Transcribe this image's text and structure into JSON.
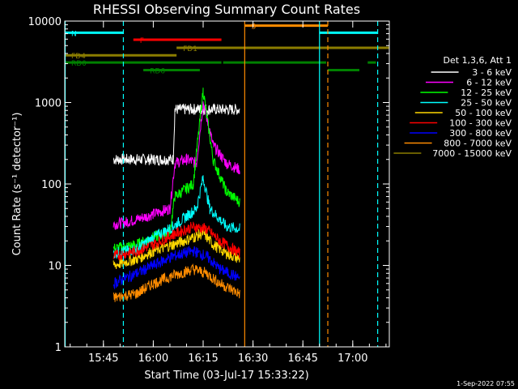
{
  "colors": {
    "background": "#000000",
    "frame": "#ffffff",
    "cyan": "#00ffff",
    "orange": "#ff8c00",
    "red": "#ff0000",
    "olive": "#8b7d00",
    "green": "#008000"
  },
  "chart_data": {
    "type": "line",
    "title": "RHESSI Observing Summary Count Rates",
    "xlabel": "Start Time (03-Jul-17 15:33:22)",
    "ylabel": "Count Rate (s⁻¹ detector⁻¹)",
    "yscale": "log",
    "ylim": [
      1,
      10000
    ],
    "xlim": [
      "15:33:22",
      "17:11:00"
    ],
    "x_ticks": [
      "15:45",
      "16:00",
      "16:15",
      "16:30",
      "16:45",
      "17:00"
    ],
    "y_ticks": [
      "1",
      "10",
      "100",
      "1000",
      "10000"
    ],
    "legend_title": "Det 1,3,6, Att 1",
    "legend_position": "right",
    "timestamp": "1-Sep-2022 07:55",
    "series": [
      {
        "name": "3 - 6 keV",
        "color": "#ffffff",
        "points": [
          [
            "15:48:00",
            200
          ],
          [
            "15:55:00",
            200
          ],
          [
            "16:04:00",
            200
          ],
          [
            "16:06:00",
            200
          ],
          [
            "16:06:30",
            820
          ],
          [
            "16:14:00",
            830
          ],
          [
            "16:20:00",
            820
          ],
          [
            "16:26:00",
            820
          ]
        ]
      },
      {
        "name": "6 - 12 keV",
        "color": "#ff00ff",
        "points": [
          [
            "15:48:00",
            32
          ],
          [
            "15:52:00",
            34
          ],
          [
            "15:58:00",
            40
          ],
          [
            "16:05:00",
            50
          ],
          [
            "16:06:30",
            180
          ],
          [
            "16:10:00",
            200
          ],
          [
            "16:13:00",
            180
          ],
          [
            "16:15:00",
            1000
          ],
          [
            "16:18:00",
            300
          ],
          [
            "16:22:00",
            180
          ],
          [
            "16:26:00",
            150
          ]
        ]
      },
      {
        "name": "12 - 25 keV",
        "color": "#00ff00",
        "points": [
          [
            "15:48:00",
            16
          ],
          [
            "15:55:00",
            18
          ],
          [
            "16:00:00",
            22
          ],
          [
            "16:05:00",
            26
          ],
          [
            "16:06:30",
            70
          ],
          [
            "16:12:00",
            100
          ],
          [
            "16:15:00",
            1400
          ],
          [
            "16:18:00",
            200
          ],
          [
            "16:22:00",
            80
          ],
          [
            "16:26:00",
            60
          ]
        ]
      },
      {
        "name": "25 - 50 keV",
        "color": "#00ffff",
        "points": [
          [
            "15:48:00",
            14
          ],
          [
            "15:55:00",
            16
          ],
          [
            "16:00:00",
            22
          ],
          [
            "16:06:00",
            30
          ],
          [
            "16:10:00",
            40
          ],
          [
            "16:13:00",
            50
          ],
          [
            "16:15:00",
            120
          ],
          [
            "16:17:00",
            50
          ],
          [
            "16:22:00",
            30
          ],
          [
            "16:26:00",
            28
          ]
        ]
      },
      {
        "name": "50 - 100 keV",
        "color": "#ffd700",
        "points": [
          [
            "15:48:00",
            10
          ],
          [
            "15:55:00",
            12
          ],
          [
            "16:00:00",
            15
          ],
          [
            "16:06:00",
            18
          ],
          [
            "16:12:00",
            22
          ],
          [
            "16:15:00",
            25
          ],
          [
            "16:18:00",
            18
          ],
          [
            "16:22:00",
            14
          ],
          [
            "16:26:00",
            12
          ]
        ]
      },
      {
        "name": "100 - 300 keV",
        "color": "#ff0000",
        "points": [
          [
            "15:48:00",
            13
          ],
          [
            "15:55:00",
            15
          ],
          [
            "16:00:00",
            18
          ],
          [
            "16:06:00",
            24
          ],
          [
            "16:12:00",
            30
          ],
          [
            "16:16:00",
            28
          ],
          [
            "16:20:00",
            20
          ],
          [
            "16:26:00",
            14
          ]
        ]
      },
      {
        "name": "300 - 800 keV",
        "color": "#0000ff",
        "points": [
          [
            "15:48:00",
            6
          ],
          [
            "15:55:00",
            8
          ],
          [
            "16:00:00",
            10
          ],
          [
            "16:06:00",
            13
          ],
          [
            "16:12:00",
            15
          ],
          [
            "16:16:00",
            13
          ],
          [
            "16:20:00",
            9
          ],
          [
            "16:26:00",
            7
          ]
        ]
      },
      {
        "name": "800 - 7000 keV",
        "color": "#ff8c00",
        "points": [
          [
            "15:48:00",
            4
          ],
          [
            "15:55:00",
            4.5
          ],
          [
            "16:00:00",
            6
          ],
          [
            "16:06:00",
            7.5
          ],
          [
            "16:12:00",
            9
          ],
          [
            "16:16:00",
            8
          ],
          [
            "16:20:00",
            6
          ],
          [
            "16:26:00",
            4.5
          ]
        ]
      },
      {
        "name": "7000 - 15000 keV",
        "color": "#8b7d00",
        "points": []
      }
    ],
    "vertical_lines": [
      {
        "time": "15:33:30",
        "color": "#00ffff",
        "style": "solid"
      },
      {
        "time": "15:51:00",
        "color": "#00ffff",
        "style": "dashed"
      },
      {
        "time": "16:27:30",
        "color": "#ff8c00",
        "style": "solid"
      },
      {
        "time": "16:50:00",
        "color": "#00ffff",
        "style": "solid"
      },
      {
        "time": "16:52:30",
        "color": "#ff8c00",
        "style": "dashed"
      },
      {
        "time": "17:07:30",
        "color": "#00ffff",
        "style": "dashed"
      }
    ],
    "flag_bars": [
      {
        "label": "N",
        "color": "#00ffff",
        "level": 7200,
        "segments": [
          [
            "15:33:22",
            "15:51:00"
          ],
          [
            "16:50:00",
            "17:07:30"
          ]
        ]
      },
      {
        "label": "S",
        "color": "#ff8c00",
        "level": 8800,
        "segments": [
          [
            "16:27:30",
            "16:52:30"
          ]
        ]
      },
      {
        "label": "F",
        "color": "#ff0000",
        "level": 5900,
        "segments": [
          [
            "15:54:00",
            "16:20:30"
          ]
        ]
      },
      {
        "label": "FD1",
        "color": "#8b7d00",
        "level": 4700,
        "segments": [
          [
            "16:07:00",
            "17:11:00"
          ]
        ]
      },
      {
        "label": "FD4",
        "color": "#8b7d00",
        "level": 3800,
        "segments": [
          [
            "15:33:22",
            "16:07:00"
          ]
        ]
      },
      {
        "label": "RD0",
        "color": "#008000",
        "level": 3100,
        "segments": [
          [
            "15:33:22",
            "16:20:30"
          ],
          [
            "16:21:00",
            "16:52:00"
          ],
          [
            "17:04:30",
            "17:07:00"
          ]
        ]
      },
      {
        "label": "RD6",
        "color": "#008000",
        "level": 2500,
        "segments": [
          [
            "15:57:00",
            "16:14:00"
          ],
          [
            "16:52:30",
            "17:02:00"
          ]
        ]
      }
    ]
  }
}
